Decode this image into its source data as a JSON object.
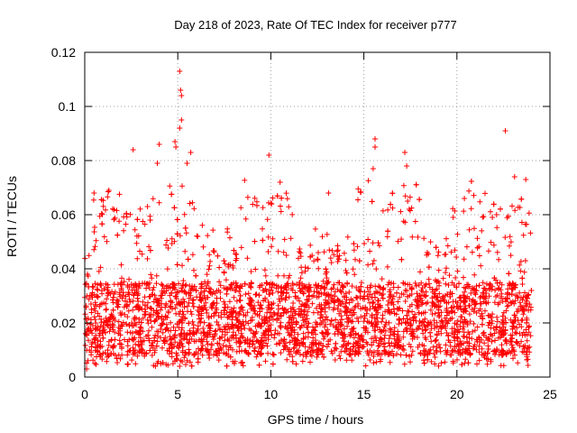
{
  "chart_data": {
    "type": "scatter",
    "title": "Day 218 of 2023, Rate Of TEC Index for receiver p777",
    "xlabel": "GPS time / hours",
    "ylabel": "ROTI / TECUs",
    "xlim": [
      0,
      25
    ],
    "ylim": [
      0,
      0.12
    ],
    "x_ticks": [
      0,
      5,
      10,
      15,
      20,
      25
    ],
    "x_tick_labels": [
      "0",
      "5",
      "10",
      "15",
      "20",
      "25"
    ],
    "y_ticks": [
      0,
      0.02,
      0.04,
      0.06,
      0.08,
      0.1,
      0.12
    ],
    "y_tick_labels": [
      "0",
      "0.02",
      "0.04",
      "0.06",
      "0.08",
      "0.1",
      "0.12"
    ],
    "grid": true,
    "marker": "+",
    "series": [
      {
        "name": "ROTI",
        "color": "#ff0000",
        "x_range": [
          0,
          24
        ],
        "typical_band": [
          0.008,
          0.035
        ],
        "notable_points": [
          {
            "x": 5.1,
            "y": 0.113
          },
          {
            "x": 5.15,
            "y": 0.106
          },
          {
            "x": 5.2,
            "y": 0.104
          },
          {
            "x": 5.2,
            "y": 0.095
          },
          {
            "x": 5.1,
            "y": 0.092
          },
          {
            "x": 4.85,
            "y": 0.087
          },
          {
            "x": 4.9,
            "y": 0.085
          },
          {
            "x": 2.6,
            "y": 0.084
          },
          {
            "x": 4.0,
            "y": 0.086
          },
          {
            "x": 5.7,
            "y": 0.083
          },
          {
            "x": 5.5,
            "y": 0.079
          },
          {
            "x": 9.9,
            "y": 0.082
          },
          {
            "x": 15.6,
            "y": 0.088
          },
          {
            "x": 15.6,
            "y": 0.085
          },
          {
            "x": 15.5,
            "y": 0.077
          },
          {
            "x": 17.2,
            "y": 0.083
          },
          {
            "x": 17.3,
            "y": 0.078
          },
          {
            "x": 22.6,
            "y": 0.091
          },
          {
            "x": 23.7,
            "y": 0.073
          },
          {
            "x": 23.1,
            "y": 0.074
          },
          {
            "x": 3.9,
            "y": 0.079
          },
          {
            "x": 0.5,
            "y": 0.068
          },
          {
            "x": 1.3,
            "y": 0.069
          },
          {
            "x": 10.5,
            "y": 0.072
          },
          {
            "x": 13.1,
            "y": 0.068
          },
          {
            "x": 20.4,
            "y": 0.066
          },
          {
            "x": 19.8,
            "y": 0.059
          },
          {
            "x": 5.1,
            "y": 0.004
          },
          {
            "x": 3.8,
            "y": 0.004
          },
          {
            "x": 0.1,
            "y": 0.003
          }
        ]
      }
    ]
  }
}
